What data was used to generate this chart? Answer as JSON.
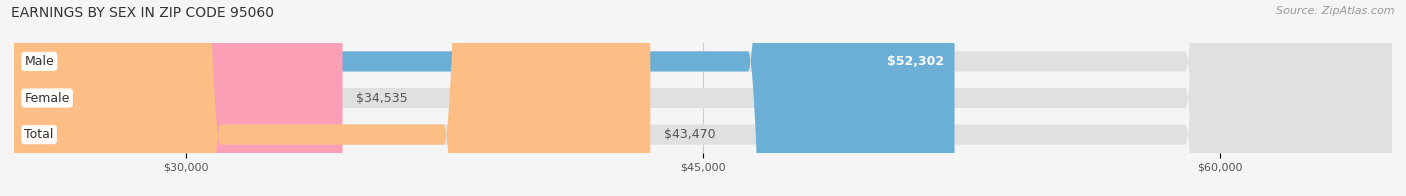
{
  "title": "EARNINGS BY SEX IN ZIP CODE 95060",
  "source": "Source: ZipAtlas.com",
  "categories": [
    "Male",
    "Female",
    "Total"
  ],
  "values": [
    52302,
    34535,
    43470
  ],
  "bar_colors": [
    "#6baed6",
    "#fa9fb5",
    "#fdbe85"
  ],
  "label_inside": [
    true,
    false,
    false
  ],
  "value_labels": [
    "$52,302",
    "$34,535",
    "$43,470"
  ],
  "x_min": 25000,
  "x_max": 65000,
  "x_ticks": [
    30000,
    45000,
    60000
  ],
  "x_tick_labels": [
    "$30,000",
    "$45,000",
    "$60,000"
  ],
  "background_color": "#f5f5f5",
  "bar_bg_color": "#e0e0e0",
  "title_fontsize": 10,
  "source_fontsize": 8,
  "label_fontsize": 9,
  "value_fontsize": 9
}
